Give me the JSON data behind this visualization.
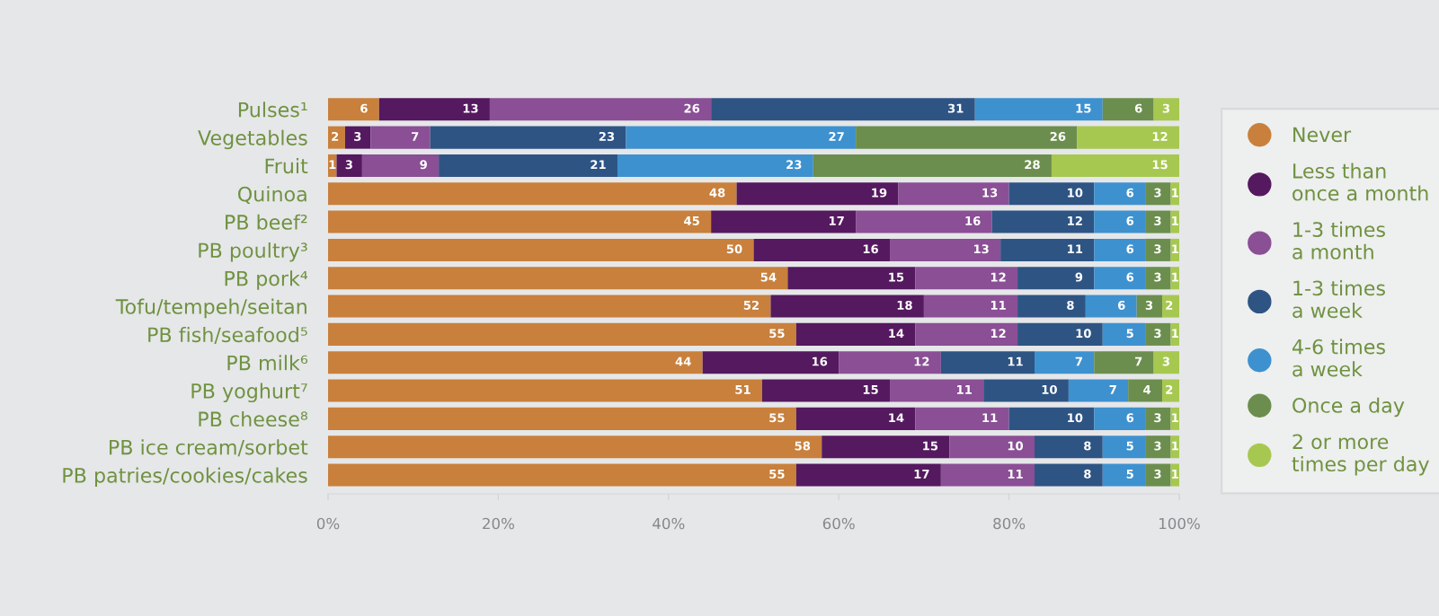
{
  "chart_data": {
    "type": "bar",
    "orientation": "horizontal",
    "stacked": true,
    "data_labels": true,
    "legend": "right",
    "grid": false,
    "categories": [
      "Pulses¹",
      "Vegetables",
      "Fruit",
      "Quinoa",
      "PB beef²",
      "PB poultry³",
      "PB pork⁴",
      "Tofu/tempeh/seitan",
      "PB fish/seafood⁵",
      "PB milk⁶",
      "PB yoghurt⁷",
      "PB cheese⁸",
      "PB ice cream/sorbet",
      "PB patries/cookies/cakes"
    ],
    "xlim": [
      0,
      100
    ],
    "xticks": [
      {
        "value": 0,
        "label": "0%"
      },
      {
        "value": 20,
        "label": "20%"
      },
      {
        "value": 40,
        "label": "40%"
      },
      {
        "value": 60,
        "label": "60%"
      },
      {
        "value": 80,
        "label": "80%"
      },
      {
        "value": 100,
        "label": "100%"
      }
    ],
    "series": [
      {
        "name": "Never",
        "color": "#c8803c",
        "values": [
          6,
          2,
          1,
          48,
          45,
          50,
          54,
          52,
          55,
          44,
          51,
          55,
          58,
          55
        ]
      },
      {
        "name": "Less than\nonce a month",
        "color": "#54195e",
        "values": [
          13,
          3,
          3,
          19,
          17,
          16,
          15,
          18,
          14,
          16,
          15,
          14,
          15,
          17
        ]
      },
      {
        "name": "1-3 times\na month",
        "color": "#8a4f95",
        "values": [
          26,
          7,
          9,
          13,
          16,
          13,
          12,
          11,
          12,
          12,
          11,
          11,
          10,
          11
        ]
      },
      {
        "name": "1-3 times\na week",
        "color": "#2e5483",
        "values": [
          31,
          23,
          21,
          10,
          12,
          11,
          9,
          8,
          10,
          11,
          10,
          10,
          8,
          8
        ]
      },
      {
        "name": "4-6 times\na week",
        "color": "#3e91cf",
        "values": [
          15,
          27,
          23,
          6,
          6,
          6,
          6,
          6,
          5,
          7,
          7,
          6,
          5,
          5
        ]
      },
      {
        "name": "Once a day",
        "color": "#6b8e4e",
        "values": [
          6,
          26,
          28,
          3,
          3,
          3,
          3,
          3,
          3,
          7,
          4,
          3,
          3,
          3
        ]
      },
      {
        "name": "2 or more\ntimes per day",
        "color": "#a7c850",
        "values": [
          3,
          12,
          15,
          1,
          1,
          1,
          1,
          2,
          1,
          3,
          2,
          1,
          1,
          1
        ]
      }
    ]
  }
}
